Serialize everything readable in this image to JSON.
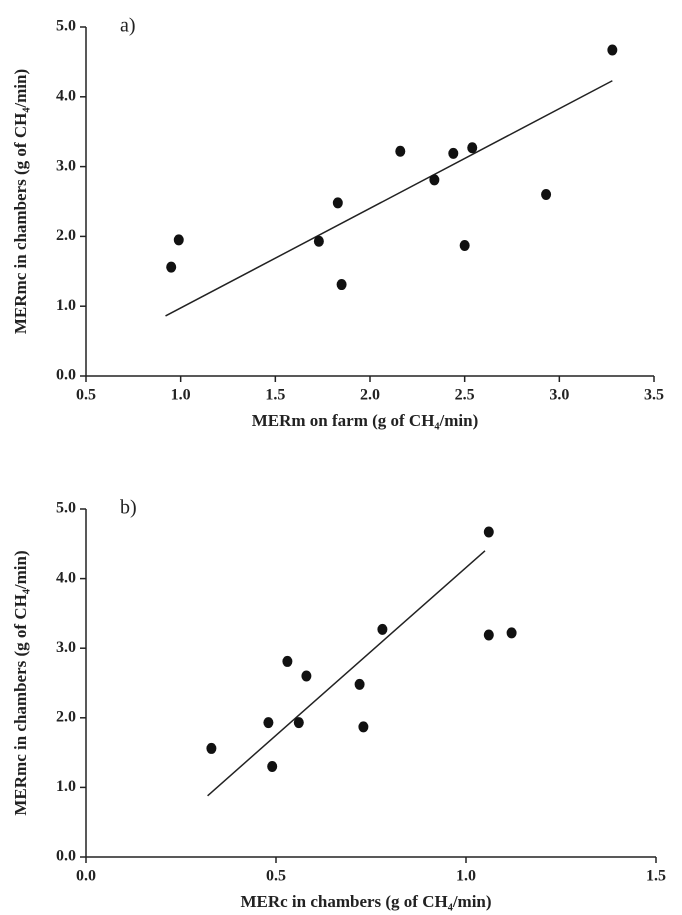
{
  "chart_data": [
    {
      "type": "scatter",
      "label": "a)",
      "xlabel": "MERm on farm (g of CH₄/min)",
      "ylabel": "MERmc in chambers (g of CH₄/min)",
      "x": [
        0.95,
        0.99,
        1.73,
        1.83,
        1.85,
        2.16,
        2.34,
        2.44,
        2.5,
        2.54,
        2.93,
        3.28
      ],
      "y": [
        1.56,
        1.95,
        1.93,
        2.48,
        1.31,
        3.22,
        2.81,
        3.19,
        1.87,
        3.27,
        2.6,
        4.67
      ],
      "fit": {
        "x": [
          0.92,
          3.28
        ],
        "y": [
          0.86,
          4.23
        ]
      },
      "color": "#111111",
      "xlim": [
        0.5,
        3.5
      ],
      "xticks": [
        0.5,
        {
          "value": 1,
          "label": "1.0"
        },
        1.5,
        {
          "value": 2,
          "label": "2.0"
        },
        2.5,
        {
          "value": 3,
          "label": "3.0"
        },
        3.5
      ],
      "ylim": [
        0,
        5
      ],
      "yticks": [
        {
          "value": 0,
          "label": "0.0"
        },
        {
          "value": 1,
          "label": "1.0"
        },
        {
          "value": 2,
          "label": "2.0"
        },
        {
          "value": 3,
          "label": "3.0"
        },
        {
          "value": 4,
          "label": "4.0"
        },
        {
          "value": 5,
          "label": "5.0"
        }
      ]
    },
    {
      "type": "scatter",
      "label": "b)",
      "xlabel": "MERc in chambers (g of CH₄/min)",
      "ylabel": "MERmc in chambers (g of CH₄/min)",
      "x": [
        0.33,
        0.49,
        0.48,
        0.53,
        0.56,
        0.58,
        0.72,
        0.73,
        0.78,
        1.06,
        1.06,
        1.12
      ],
      "y": [
        1.56,
        1.3,
        1.93,
        2.81,
        1.93,
        2.6,
        2.48,
        1.87,
        3.27,
        4.67,
        3.19,
        3.22
      ],
      "fit": {
        "x": [
          0.32,
          1.05
        ],
        "y": [
          0.88,
          4.4
        ]
      },
      "color": "#111111",
      "xlim": [
        0,
        1.5
      ],
      "xticks": [
        {
          "value": 0,
          "label": "0.0"
        },
        0.5,
        {
          "value": 1,
          "label": "1.0"
        },
        1.5
      ],
      "ylim": [
        0,
        5
      ],
      "yticks": [
        {
          "value": 0,
          "label": "0.0"
        },
        {
          "value": 1,
          "label": "1.0"
        },
        {
          "value": 2,
          "label": "2.0"
        },
        {
          "value": 3,
          "label": "3.0"
        },
        {
          "value": 4,
          "label": "4.0"
        },
        {
          "value": 5,
          "label": "5.0"
        }
      ]
    }
  ]
}
